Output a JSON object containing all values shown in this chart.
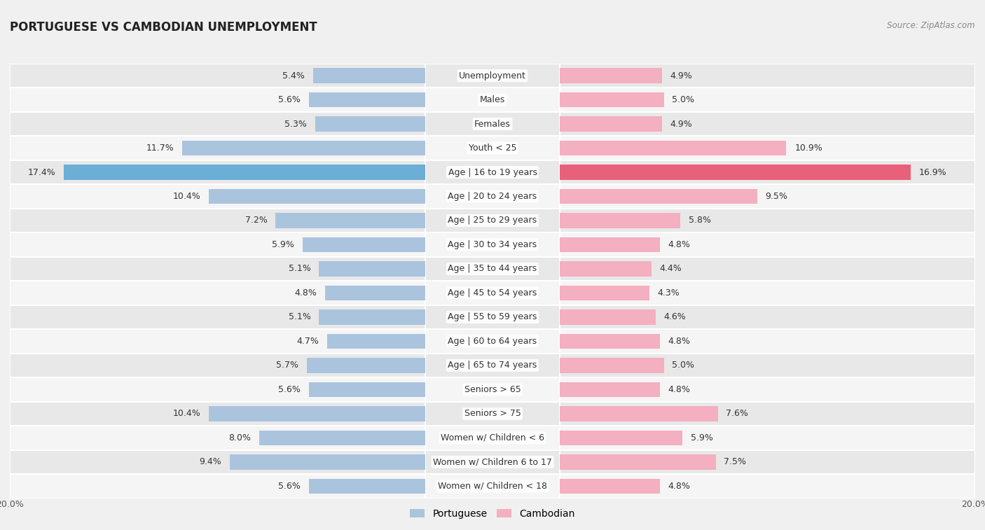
{
  "title": "PORTUGUESE VS CAMBODIAN UNEMPLOYMENT",
  "source": "Source: ZipAtlas.com",
  "categories": [
    "Unemployment",
    "Males",
    "Females",
    "Youth < 25",
    "Age | 16 to 19 years",
    "Age | 20 to 24 years",
    "Age | 25 to 29 years",
    "Age | 30 to 34 years",
    "Age | 35 to 44 years",
    "Age | 45 to 54 years",
    "Age | 55 to 59 years",
    "Age | 60 to 64 years",
    "Age | 65 to 74 years",
    "Seniors > 65",
    "Seniors > 75",
    "Women w/ Children < 6",
    "Women w/ Children 6 to 17",
    "Women w/ Children < 18"
  ],
  "portuguese": [
    5.4,
    5.6,
    5.3,
    11.7,
    17.4,
    10.4,
    7.2,
    5.9,
    5.1,
    4.8,
    5.1,
    4.7,
    5.7,
    5.6,
    10.4,
    8.0,
    9.4,
    5.6
  ],
  "cambodian": [
    4.9,
    5.0,
    4.9,
    10.9,
    16.9,
    9.5,
    5.8,
    4.8,
    4.4,
    4.3,
    4.6,
    4.8,
    5.0,
    4.8,
    7.6,
    5.9,
    7.5,
    4.8
  ],
  "portuguese_color": "#aac4de",
  "cambodian_color": "#f4afc0",
  "highlight_portuguese_color": "#6baed6",
  "highlight_cambodian_color": "#e9607a",
  "highlight_row": 4,
  "max_val": 20.0,
  "bar_height": 0.62,
  "bg_color": "#f0f0f0",
  "row_bg_even": "#e8e8e8",
  "row_bg_odd": "#f5f5f5",
  "label_fontsize": 9.0,
  "value_fontsize": 9.0,
  "title_fontsize": 12,
  "source_fontsize": 8.5
}
